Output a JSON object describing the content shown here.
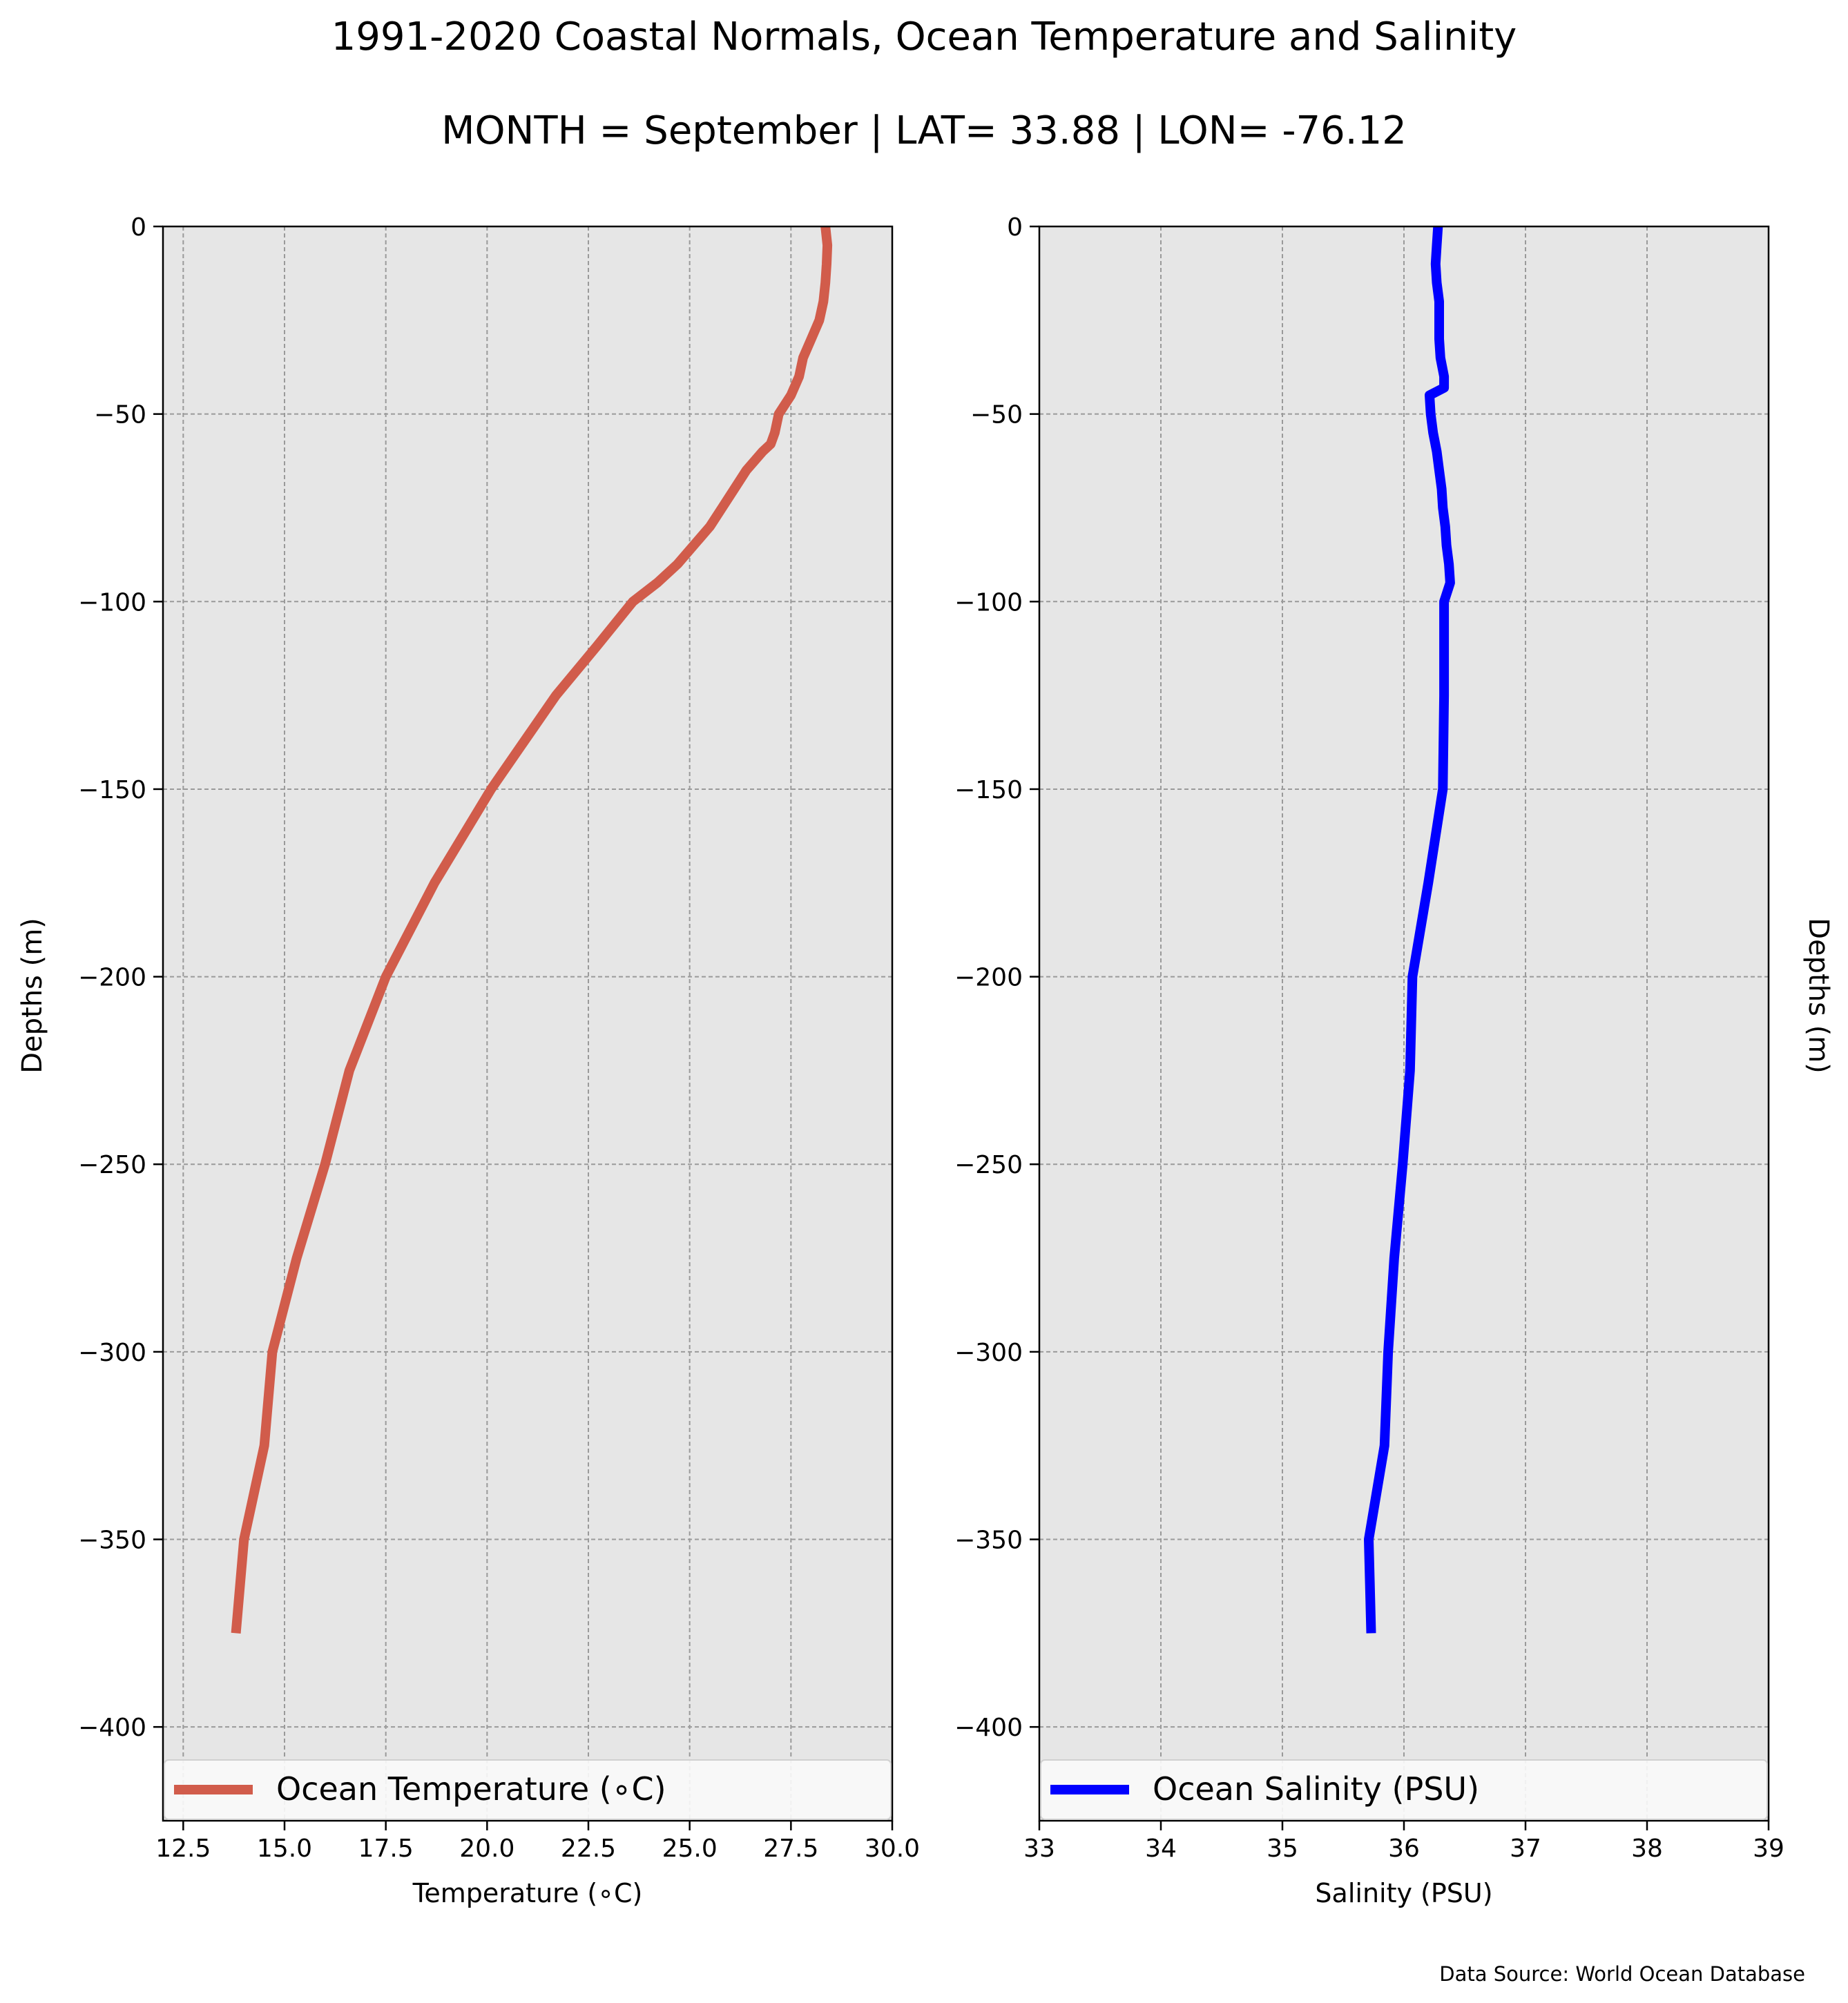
{
  "title": "1991-2020 Coastal Normals, Ocean Temperature and Salinity",
  "subtitle": "MONTH = September | LAT= 33.88 | LON= -76.12",
  "source": "Data Source: World Ocean Database",
  "chart_data": [
    {
      "type": "line",
      "ylabel": "Depths (m)",
      "xlabel": "Temperature (∘C)",
      "xlim": [
        12.0,
        30.0
      ],
      "ylim": [
        -425,
        0
      ],
      "xticks": [
        "12.5",
        "15.0",
        "17.5",
        "20.0",
        "22.5",
        "25.0",
        "27.5",
        "30.0"
      ],
      "xtick_values": [
        12.5,
        15.0,
        17.5,
        20.0,
        22.5,
        25.0,
        27.5,
        30.0
      ],
      "yticks": [
        "0",
        "−50",
        "−100",
        "−150",
        "−200",
        "−250",
        "−300",
        "−350",
        "−400"
      ],
      "ytick_values": [
        0,
        -50,
        -100,
        -150,
        -200,
        -250,
        -300,
        -350,
        -400
      ],
      "grid": true,
      "legend_position": "bottom",
      "series": [
        {
          "name": "Ocean Temperature (∘C)",
          "color": "#d15c4b",
          "x": [
            28.35,
            28.4,
            28.38,
            28.35,
            28.3,
            28.2,
            28.0,
            27.8,
            27.7,
            27.5,
            27.2,
            27.1,
            27.0,
            26.8,
            26.4,
            26.1,
            25.8,
            25.5,
            25.1,
            24.7,
            24.2,
            23.6,
            22.7,
            21.7,
            20.1,
            18.7,
            17.5,
            16.6,
            16.0,
            15.3,
            14.7,
            14.5,
            14.0,
            13.8
          ],
          "y": [
            0,
            -5,
            -10,
            -15,
            -20,
            -25,
            -30,
            -35,
            -40,
            -45,
            -50,
            -55,
            -58,
            -60,
            -65,
            -70,
            -75,
            -80,
            -85,
            -90,
            -95,
            -100,
            -112,
            -125,
            -150,
            -175,
            -200,
            -225,
            -250,
            -275,
            -300,
            -325,
            -350,
            -375
          ]
        }
      ]
    },
    {
      "type": "line",
      "ylabel": "Depths (m)",
      "xlabel": "Salinity (PSU)",
      "xlim": [
        33,
        39
      ],
      "ylim": [
        -425,
        0
      ],
      "xticks": [
        "33",
        "34",
        "35",
        "36",
        "37",
        "38",
        "39"
      ],
      "xtick_values": [
        33,
        34,
        35,
        36,
        37,
        38,
        39
      ],
      "yticks": [
        "0",
        "−50",
        "−100",
        "−150",
        "−200",
        "−250",
        "−300",
        "−350",
        "−400"
      ],
      "ytick_values": [
        0,
        -50,
        -100,
        -150,
        -200,
        -250,
        -300,
        -350,
        -400
      ],
      "grid": true,
      "legend_position": "bottom",
      "series": [
        {
          "name": "Ocean Salinity (PSU)",
          "color": "#0000ff",
          "x": [
            36.28,
            36.27,
            36.26,
            36.27,
            36.29,
            36.29,
            36.29,
            36.3,
            36.33,
            36.33,
            36.21,
            36.22,
            36.24,
            36.27,
            36.29,
            36.31,
            36.32,
            36.34,
            36.35,
            36.37,
            36.38,
            36.33,
            36.33,
            36.33,
            36.32,
            36.2,
            36.07,
            36.05,
            35.99,
            35.92,
            35.87,
            35.84,
            35.71,
            35.73
          ],
          "y": [
            0,
            -5,
            -10,
            -15,
            -20,
            -25,
            -30,
            -35,
            -40,
            -43,
            -45,
            -50,
            -55,
            -60,
            -65,
            -70,
            -75,
            -80,
            -85,
            -90,
            -95,
            -100,
            -112,
            -125,
            -150,
            -175,
            -200,
            -225,
            -250,
            -275,
            -300,
            -325,
            -350,
            -375
          ]
        }
      ]
    }
  ]
}
